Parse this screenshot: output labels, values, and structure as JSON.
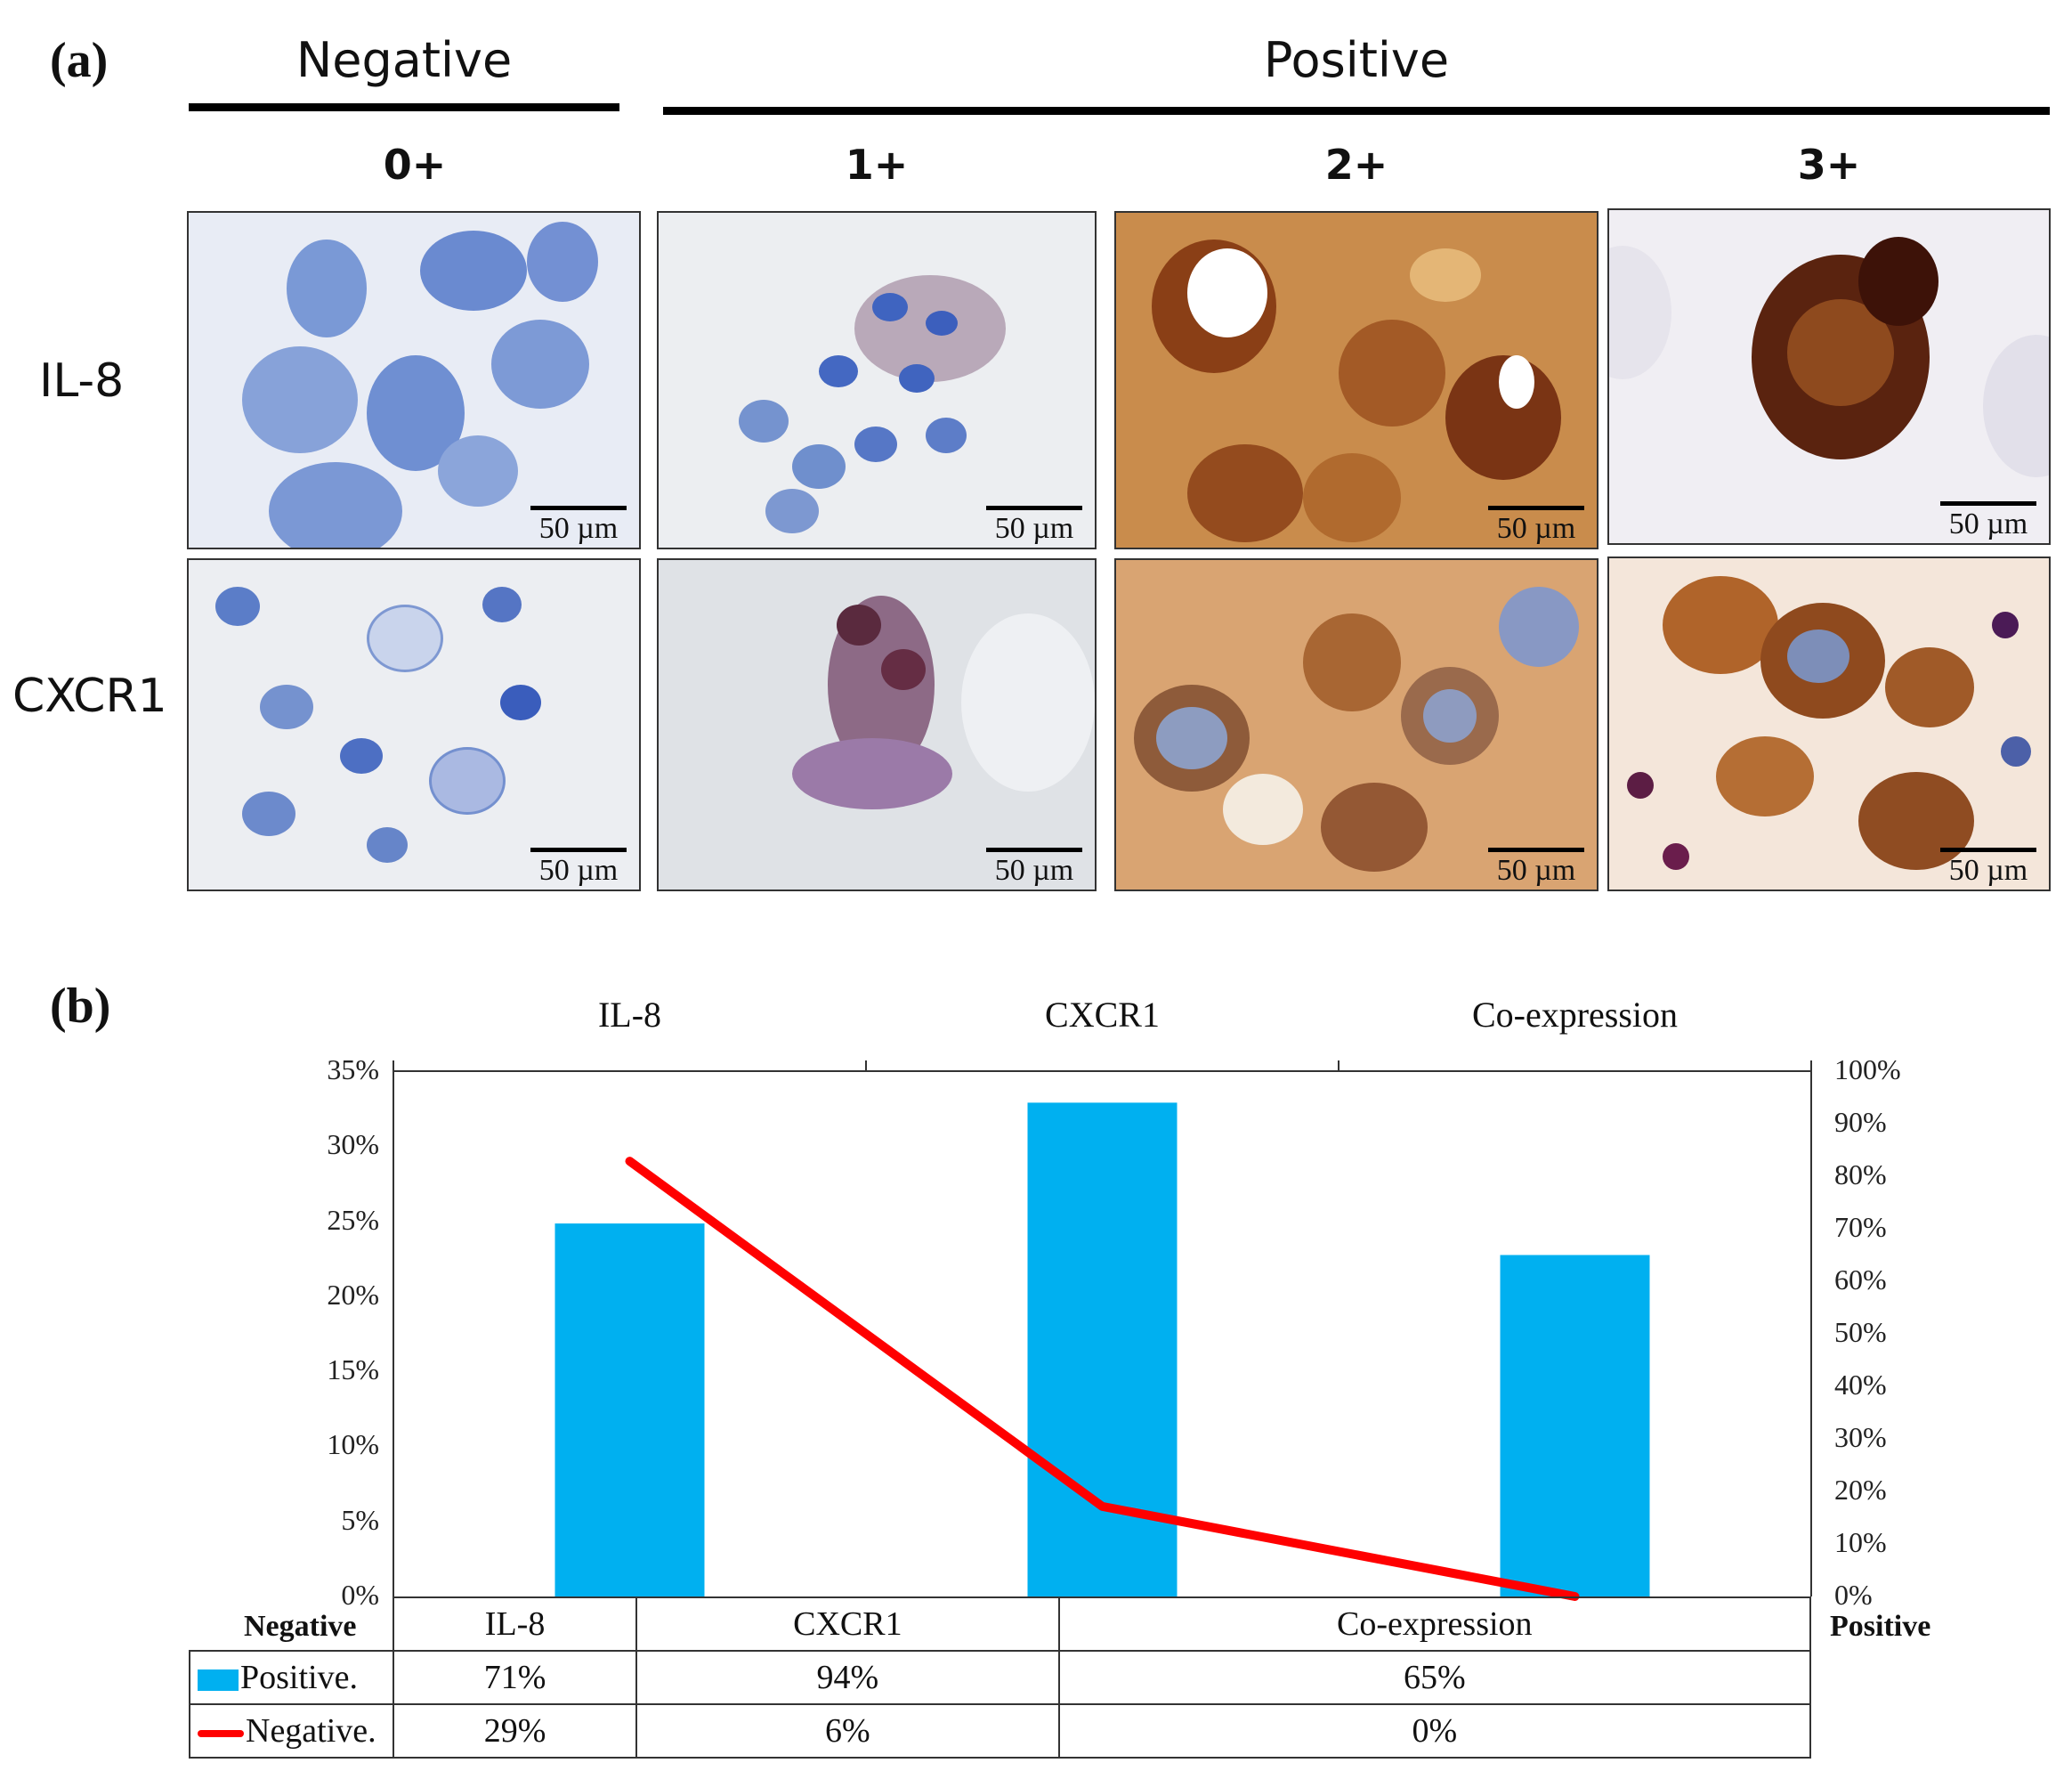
{
  "panel_a": {
    "label": "(a)",
    "group_negative": "Negative",
    "group_positive": "Positive",
    "scores": [
      "0+",
      "1+",
      "2+",
      "3+"
    ],
    "rows": [
      "IL-8",
      "CXCR1"
    ],
    "scale_bar": "50 µm",
    "colors": {
      "hematoxylin": "#5b80c9",
      "dab_light": "#c9863e",
      "dab_dark": "#4a1a0e",
      "background": "#eef0f5"
    }
  },
  "panel_b": {
    "label": "(b)",
    "left_axis_title": "Negative",
    "right_axis_title": "Positive",
    "table": {
      "header": [
        "IL-8",
        "CXCR1",
        "Co-expression"
      ],
      "rows": [
        {
          "legend": "Positive.",
          "values": [
            "71%",
            "94%",
            "65%"
          ]
        },
        {
          "legend": "Negative.",
          "values": [
            "29%",
            "6%",
            "0%"
          ]
        }
      ]
    }
  },
  "chart_data": {
    "type": "bar",
    "categories": [
      "IL-8",
      "CXCR1",
      "Co-expression"
    ],
    "left_ticks": [
      "0%",
      "5%",
      "10%",
      "15%",
      "20%",
      "25%",
      "30%",
      "35%"
    ],
    "right_ticks": [
      "0%",
      "10%",
      "20%",
      "30%",
      "40%",
      "50%",
      "60%",
      "70%",
      "80%",
      "90%",
      "100%"
    ],
    "ylim_left": [
      0,
      35
    ],
    "ylim_right": [
      0,
      100
    ],
    "series": [
      {
        "name": "Positive.",
        "kind": "bar",
        "axis": "right",
        "color": "#00b0f0",
        "values": [
          71,
          94,
          65
        ]
      },
      {
        "name": "Negative.",
        "kind": "line",
        "axis": "left",
        "color": "#ff0000",
        "values": [
          29,
          6,
          0
        ]
      }
    ],
    "legend": "bottom-table",
    "grid": false
  }
}
